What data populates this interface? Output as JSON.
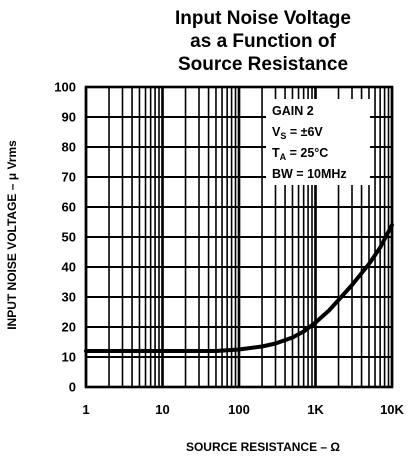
{
  "chart_data": {
    "type": "line",
    "title_lines": [
      "Input Noise Voltage",
      "as a Function of",
      "Source Resistance"
    ],
    "xlabel": "SOURCE RESISTANCE – Ω",
    "ylabel": "INPUT NOISE VOLTAGE – μ Vrms",
    "x_scale": "log",
    "xlim": [
      1,
      10000
    ],
    "ylim": [
      0,
      100
    ],
    "x_ticks": [
      {
        "value": 1,
        "label": "1"
      },
      {
        "value": 10,
        "label": "10"
      },
      {
        "value": 100,
        "label": "100"
      },
      {
        "value": 1000,
        "label": "1K"
      },
      {
        "value": 10000,
        "label": "10K"
      }
    ],
    "y_ticks": [
      0,
      10,
      20,
      30,
      40,
      50,
      60,
      70,
      80,
      90,
      100
    ],
    "grid": true,
    "conditions": {
      "gain": {
        "text": "GAIN 2"
      },
      "vs": {
        "main": "V",
        "sub": "S",
        "rest": " = ±6V"
      },
      "ta": {
        "main": "T",
        "sub": "A",
        "rest": " = 25°C"
      },
      "bw": {
        "text": "BW = 10MHz"
      }
    },
    "series": [
      {
        "x": [
          1,
          2,
          5,
          10,
          20,
          50,
          100,
          200,
          300,
          500,
          700,
          1000,
          1500,
          2000,
          3000,
          5000,
          7000,
          10000
        ],
        "y": [
          12,
          12,
          12,
          12,
          12,
          12,
          12.5,
          13.5,
          14.5,
          16.5,
          18.5,
          21.5,
          25.5,
          29,
          34,
          41,
          46.5,
          54
        ]
      }
    ]
  }
}
